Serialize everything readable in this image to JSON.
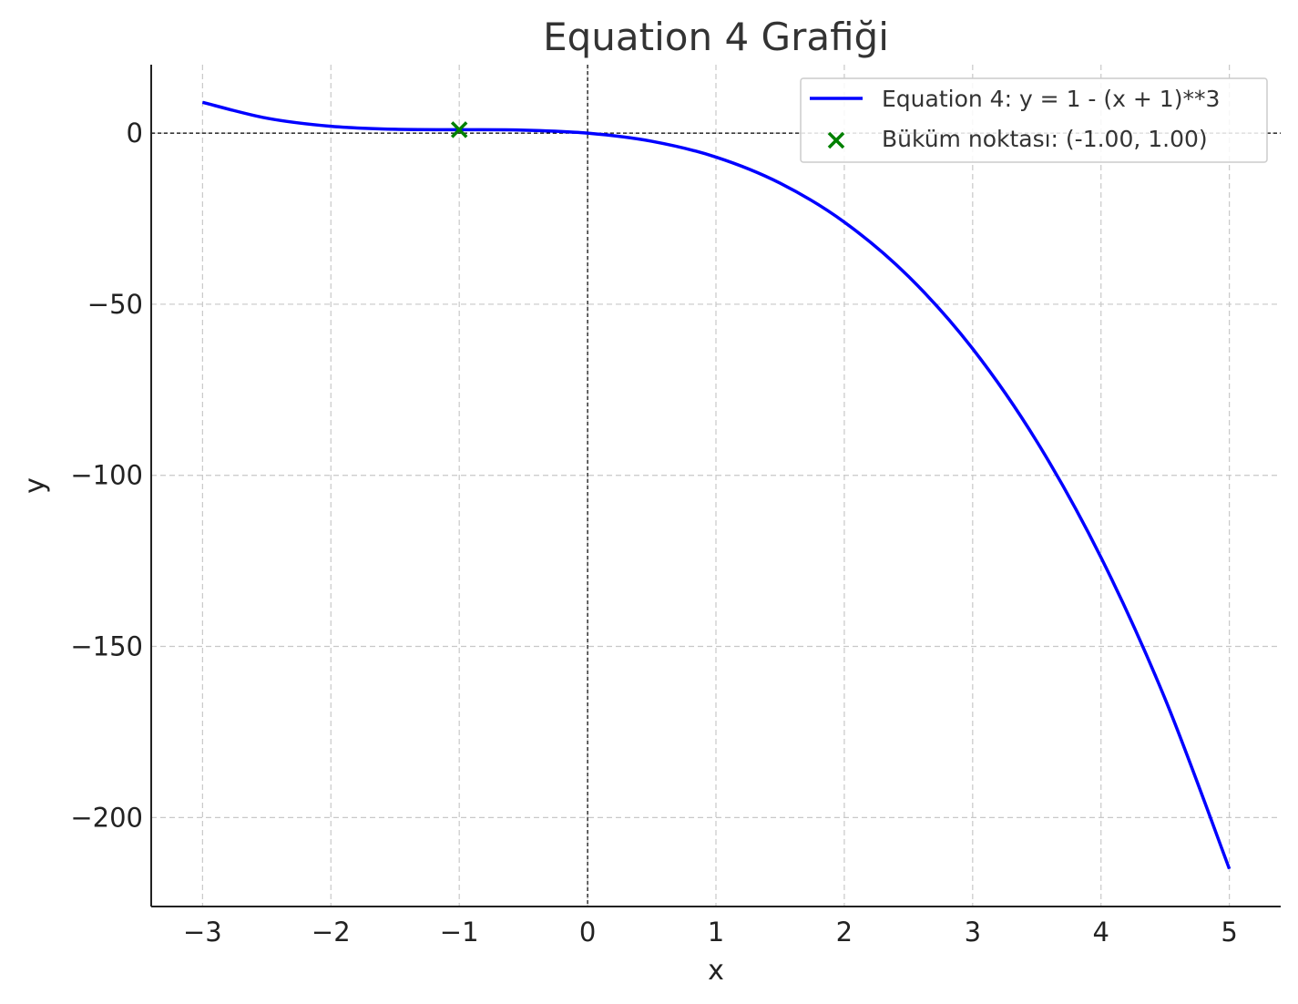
{
  "chart_data": {
    "type": "line",
    "title": "Equation 4 Grafiği",
    "xlabel": "x",
    "ylabel": "y",
    "xlim": [
      -3.4,
      5.4
    ],
    "ylim": [
      -226,
      20
    ],
    "xticks": [
      -3,
      -2,
      -1,
      0,
      1,
      2,
      3,
      4,
      5
    ],
    "yticks": [
      0,
      -50,
      -100,
      -150,
      -200
    ],
    "xtick_labels": [
      "−3",
      "−2",
      "−1",
      "0",
      "1",
      "2",
      "3",
      "4",
      "5"
    ],
    "ytick_labels": [
      "0",
      "−50",
      "−100",
      "−150",
      "−200"
    ],
    "grid": true,
    "reference_lines": {
      "x": 0,
      "y": 0
    },
    "legend_position": "top-right",
    "series": [
      {
        "name": "Equation 4: y = 1 - (x + 1)**3",
        "type": "line",
        "color": "#0000ff",
        "x": [
          -3,
          -2.5,
          -2,
          -1.5,
          -1,
          -0.5,
          0,
          0.5,
          1,
          1.5,
          2,
          2.5,
          3,
          3.5,
          4,
          4.5,
          5
        ],
        "y": [
          9,
          4.375,
          2,
          1.125,
          1,
          0.875,
          0,
          -2.375,
          -7,
          -14.625,
          -26,
          -41.875,
          -63,
          -90.125,
          -124,
          -165.375,
          -215
        ]
      },
      {
        "name": "Büküm noktası: (-1.00, 1.00)",
        "type": "scatter",
        "marker": "x",
        "color": "#008000",
        "x": [
          -1
        ],
        "y": [
          1
        ]
      }
    ]
  }
}
